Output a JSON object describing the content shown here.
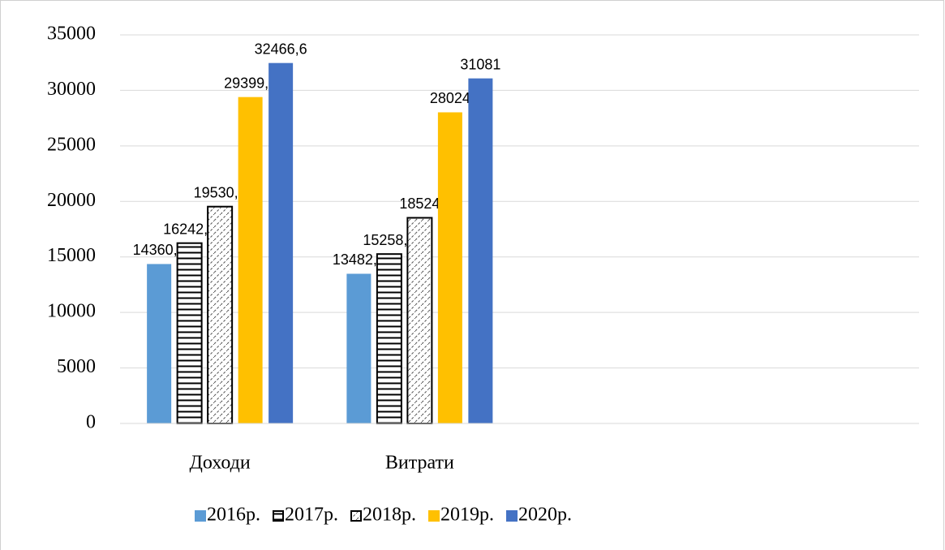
{
  "chart_data": {
    "type": "bar",
    "categories": [
      "Доходи",
      "Витрати",
      null,
      null
    ],
    "series": [
      {
        "name": "2016р.",
        "color": "#5b9bd5",
        "values": [
          14360.8,
          13482.3,
          null,
          null
        ],
        "value_labels": [
          "14360,8",
          "13482,3",
          null,
          null
        ]
      },
      {
        "name": "2017р.",
        "color": "#000000",
        "pattern": "horizontal",
        "values": [
          16242.6,
          15258.3,
          null,
          null
        ],
        "value_labels": [
          "16242,6",
          "15258,3",
          null,
          null
        ]
      },
      {
        "name": "2018р.",
        "color": "#000000",
        "pattern": "diagonal",
        "values": [
          19530.8,
          18524,
          null,
          null
        ],
        "value_labels": [
          "19530,8",
          "18524",
          null,
          null
        ]
      },
      {
        "name": "2019р.",
        "color": "#ffc000",
        "values": [
          29399.1,
          28024,
          null,
          null
        ],
        "value_labels": [
          "29399,1",
          "28024",
          null,
          null
        ]
      },
      {
        "name": "2020р.",
        "color": "#4472c4",
        "values": [
          32466.6,
          31081,
          null,
          null
        ],
        "value_labels": [
          "32466,6",
          "31081",
          null,
          null
        ]
      }
    ],
    "ylim": [
      0,
      35000
    ],
    "yticks": [
      0,
      5000,
      10000,
      15000,
      20000,
      25000,
      30000,
      35000
    ],
    "grid": true,
    "legend": "bottom"
  }
}
